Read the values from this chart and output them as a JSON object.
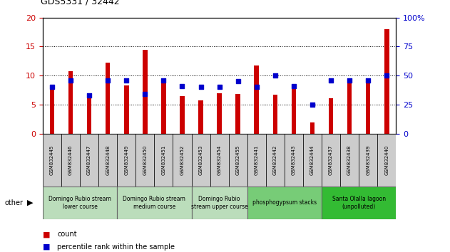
{
  "title": "GDS5331 / 32442",
  "samples": [
    "GSM832445",
    "GSM832446",
    "GSM832447",
    "GSM832448",
    "GSM832449",
    "GSM832450",
    "GSM832451",
    "GSM832452",
    "GSM832453",
    "GSM832454",
    "GSM832455",
    "GSM832441",
    "GSM832442",
    "GSM832443",
    "GSM832444",
    "GSM832437",
    "GSM832438",
    "GSM832439",
    "GSM832440"
  ],
  "counts": [
    7.8,
    10.8,
    6.3,
    12.2,
    8.3,
    14.5,
    9.0,
    6.5,
    5.7,
    7.0,
    6.8,
    11.7,
    6.7,
    8.2,
    1.9,
    6.1,
    9.0,
    9.0,
    18.0
  ],
  "percentiles_pct": [
    40,
    46,
    33,
    46,
    46,
    34,
    46,
    41,
    40,
    40,
    45,
    40,
    50,
    41,
    25,
    46,
    46,
    46,
    50
  ],
  "groups": [
    {
      "label": "Domingo Rubio stream\nlower course",
      "start": 0,
      "end": 4,
      "color": "#bbddbb"
    },
    {
      "label": "Domingo Rubio stream\nmedium course",
      "start": 4,
      "end": 8,
      "color": "#bbddbb"
    },
    {
      "label": "Domingo Rubio\nstream upper course",
      "start": 8,
      "end": 11,
      "color": "#bbddbb"
    },
    {
      "label": "phosphogypsum stacks",
      "start": 11,
      "end": 15,
      "color": "#77cc77"
    },
    {
      "label": "Santa Olalla lagoon\n(unpolluted)",
      "start": 15,
      "end": 19,
      "color": "#33bb33"
    }
  ],
  "bar_color": "#cc0000",
  "dot_color": "#0000cc",
  "ylim_left": [
    0,
    20
  ],
  "ylim_right": [
    0,
    100
  ],
  "yticks_left": [
    0,
    5,
    10,
    15,
    20
  ],
  "yticks_right": [
    0,
    25,
    50,
    75,
    100
  ],
  "tick_bg_color": "#cccccc",
  "group_border_color": "#666666"
}
